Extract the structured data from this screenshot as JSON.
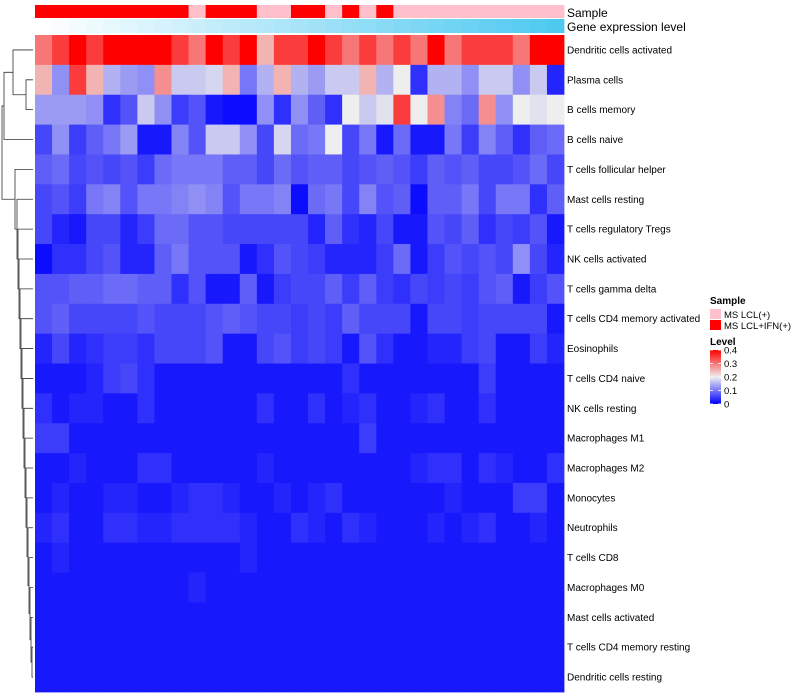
{
  "chart_data": {
    "type": "heatmap",
    "annotations": [
      {
        "name": "Sample",
        "values": [
          "MS LCL+IFN(+)",
          "MS LCL+IFN(+)",
          "MS LCL+IFN(+)",
          "MS LCL+IFN(+)",
          "MS LCL+IFN(+)",
          "MS LCL+IFN(+)",
          "MS LCL+IFN(+)",
          "MS LCL+IFN(+)",
          "MS LCL+IFN(+)",
          "MS LCL(+)",
          "MS LCL+IFN(+)",
          "MS LCL+IFN(+)",
          "MS LCL+IFN(+)",
          "MS LCL(+)",
          "MS LCL(+)",
          "MS LCL+IFN(+)",
          "MS LCL+IFN(+)",
          "MS LCL(+)",
          "MS LCL+IFN(+)",
          "MS LCL(+)",
          "MS LCL+IFN(+)",
          "MS LCL(+)",
          "MS LCL(+)",
          "MS LCL(+)",
          "MS LCL(+)",
          "MS LCL(+)",
          "MS LCL(+)",
          "MS LCL(+)",
          "MS LCL(+)",
          "MS LCL(+)",
          "MS LCL(+)"
        ]
      },
      {
        "name": "Gene expression level",
        "gradient": [
          "#ffffff",
          "#4ec9f0"
        ]
      }
    ],
    "rows": [
      "Dendritic cells activated",
      "Plasma cells",
      "B cells memory",
      "B cells naive",
      "T cells follicular helper",
      "Mast cells resting",
      "T cells regulatory  Tregs",
      "NK cells activated",
      "T cells gamma delta",
      "T cells CD4 memory activated",
      "Eosinophils",
      "T cells CD4 naive",
      "NK cells resting",
      "Macrophages M1",
      "Macrophages M2",
      "Monocytes",
      "Neutrophils",
      "T cells CD8",
      "Macrophages M0",
      "Mast cells activated",
      "T cells CD4 memory resting",
      "Dendritic cells resting"
    ],
    "values": [
      [
        0.3,
        0.35,
        0.4,
        0.35,
        0.4,
        0.4,
        0.4,
        0.4,
        0.35,
        0.3,
        0.4,
        0.35,
        0.4,
        0.25,
        0.35,
        0.35,
        0.4,
        0.35,
        0.3,
        0.35,
        0.3,
        0.35,
        0.3,
        0.4,
        0.3,
        0.35,
        0.35,
        0.35,
        0.3,
        0.4,
        0.4
      ],
      [
        0.25,
        0.12,
        0.35,
        0.25,
        0.15,
        0.13,
        0.12,
        0.28,
        0.17,
        0.17,
        0.18,
        0.25,
        0.1,
        0.15,
        0.25,
        0.15,
        0.13,
        0.17,
        0.17,
        0.25,
        0.15,
        0.2,
        0.04,
        0.15,
        0.15,
        0.12,
        0.17,
        0.17,
        0.12,
        0.17,
        0.03
      ],
      [
        0.13,
        0.13,
        0.13,
        0.12,
        0.04,
        0.07,
        0.17,
        0.12,
        0.05,
        0.07,
        0.02,
        0.01,
        0.01,
        0.12,
        0.04,
        0.12,
        0.08,
        0.04,
        0.2,
        0.17,
        0.19,
        0.35,
        0.2,
        0.28,
        0.11,
        0.09,
        0.28,
        0.12,
        0.2,
        0.19,
        0.2
      ],
      [
        0.06,
        0.12,
        0.05,
        0.08,
        0.1,
        0.13,
        0.02,
        0.02,
        0.11,
        0.07,
        0.17,
        0.17,
        0.12,
        0.06,
        0.18,
        0.09,
        0.1,
        0.2,
        0.06,
        0.1,
        0.02,
        0.09,
        0.02,
        0.02,
        0.1,
        0.05,
        0.11,
        0.08,
        0.04,
        0.08,
        0.09
      ],
      [
        0.08,
        0.09,
        0.06,
        0.07,
        0.06,
        0.07,
        0.05,
        0.09,
        0.1,
        0.1,
        0.1,
        0.08,
        0.08,
        0.06,
        0.09,
        0.07,
        0.08,
        0.08,
        0.06,
        0.07,
        0.08,
        0.07,
        0.05,
        0.08,
        0.07,
        0.08,
        0.06,
        0.06,
        0.07,
        0.09,
        0.06
      ],
      [
        0.06,
        0.07,
        0.05,
        0.1,
        0.11,
        0.07,
        0.1,
        0.1,
        0.11,
        0.12,
        0.11,
        0.07,
        0.1,
        0.1,
        0.11,
        0.01,
        0.09,
        0.1,
        0.06,
        0.11,
        0.07,
        0.08,
        0.01,
        0.08,
        0.08,
        0.1,
        0.06,
        0.1,
        0.1,
        0.04,
        0.08
      ],
      [
        0.06,
        0.03,
        0.02,
        0.06,
        0.06,
        0.03,
        0.05,
        0.09,
        0.09,
        0.07,
        0.07,
        0.06,
        0.06,
        0.06,
        0.06,
        0.06,
        0.03,
        0.08,
        0.04,
        0.03,
        0.06,
        0.02,
        0.02,
        0.07,
        0.06,
        0.08,
        0.04,
        0.06,
        0.05,
        0.07,
        0.02
      ],
      [
        0.01,
        0.04,
        0.04,
        0.06,
        0.07,
        0.03,
        0.03,
        0.08,
        0.1,
        0.07,
        0.07,
        0.07,
        0.02,
        0.04,
        0.07,
        0.06,
        0.05,
        0.03,
        0.03,
        0.03,
        0.05,
        0.09,
        0.02,
        0.05,
        0.07,
        0.06,
        0.07,
        0.06,
        0.12,
        0.06,
        0.03
      ],
      [
        0.07,
        0.07,
        0.08,
        0.08,
        0.09,
        0.09,
        0.08,
        0.08,
        0.04,
        0.07,
        0.02,
        0.02,
        0.08,
        0.02,
        0.05,
        0.06,
        0.06,
        0.08,
        0.05,
        0.08,
        0.05,
        0.04,
        0.06,
        0.05,
        0.06,
        0.05,
        0.07,
        0.08,
        0.02,
        0.05,
        0.07
      ],
      [
        0.07,
        0.08,
        0.06,
        0.06,
        0.06,
        0.06,
        0.07,
        0.06,
        0.06,
        0.06,
        0.07,
        0.08,
        0.07,
        0.06,
        0.06,
        0.05,
        0.06,
        0.05,
        0.08,
        0.06,
        0.06,
        0.06,
        0.02,
        0.06,
        0.06,
        0.05,
        0.06,
        0.06,
        0.06,
        0.06,
        0.02
      ],
      [
        0.03,
        0.06,
        0.03,
        0.04,
        0.05,
        0.05,
        0.04,
        0.06,
        0.06,
        0.06,
        0.07,
        0.02,
        0.02,
        0.06,
        0.07,
        0.05,
        0.06,
        0.05,
        0.02,
        0.07,
        0.04,
        0.02,
        0.02,
        0.03,
        0.03,
        0.05,
        0.06,
        0.02,
        0.02,
        0.05,
        0.03
      ],
      [
        0.02,
        0.02,
        0.02,
        0.03,
        0.05,
        0.06,
        0.04,
        0.02,
        0.02,
        0.02,
        0.02,
        0.02,
        0.02,
        0.02,
        0.02,
        0.02,
        0.02,
        0.02,
        0.04,
        0.02,
        0.02,
        0.02,
        0.02,
        0.02,
        0.02,
        0.02,
        0.05,
        0.02,
        0.02,
        0.02,
        0.02
      ],
      [
        0.04,
        0.02,
        0.03,
        0.03,
        0.02,
        0.02,
        0.04,
        0.02,
        0.02,
        0.02,
        0.02,
        0.02,
        0.02,
        0.04,
        0.02,
        0.02,
        0.04,
        0.02,
        0.03,
        0.04,
        0.02,
        0.02,
        0.03,
        0.04,
        0.02,
        0.02,
        0.04,
        0.02,
        0.02,
        0.02,
        0.02
      ],
      [
        0.05,
        0.05,
        0.02,
        0.02,
        0.02,
        0.02,
        0.02,
        0.02,
        0.02,
        0.02,
        0.02,
        0.02,
        0.02,
        0.02,
        0.02,
        0.02,
        0.02,
        0.02,
        0.02,
        0.05,
        0.02,
        0.02,
        0.02,
        0.02,
        0.02,
        0.02,
        0.02,
        0.02,
        0.02,
        0.02,
        0.02
      ],
      [
        0.02,
        0.02,
        0.03,
        0.02,
        0.02,
        0.02,
        0.04,
        0.04,
        0.02,
        0.02,
        0.02,
        0.02,
        0.02,
        0.03,
        0.02,
        0.02,
        0.02,
        0.02,
        0.02,
        0.02,
        0.02,
        0.02,
        0.03,
        0.04,
        0.04,
        0.02,
        0.04,
        0.03,
        0.02,
        0.02,
        0.04
      ],
      [
        0.02,
        0.03,
        0.02,
        0.02,
        0.03,
        0.03,
        0.02,
        0.02,
        0.03,
        0.04,
        0.04,
        0.03,
        0.02,
        0.02,
        0.03,
        0.02,
        0.03,
        0.04,
        0.02,
        0.02,
        0.02,
        0.02,
        0.02,
        0.02,
        0.03,
        0.02,
        0.02,
        0.02,
        0.05,
        0.05,
        0.02
      ],
      [
        0.03,
        0.04,
        0.02,
        0.02,
        0.04,
        0.04,
        0.03,
        0.03,
        0.04,
        0.04,
        0.04,
        0.04,
        0.03,
        0.02,
        0.02,
        0.04,
        0.03,
        0.02,
        0.04,
        0.03,
        0.02,
        0.02,
        0.02,
        0.03,
        0.02,
        0.03,
        0.04,
        0.02,
        0.02,
        0.03,
        0.02
      ],
      [
        0.02,
        0.03,
        0.02,
        0.02,
        0.02,
        0.02,
        0.02,
        0.02,
        0.02,
        0.02,
        0.02,
        0.02,
        0.03,
        0.02,
        0.02,
        0.02,
        0.02,
        0.02,
        0.02,
        0.02,
        0.02,
        0.02,
        0.02,
        0.02,
        0.02,
        0.02,
        0.02,
        0.02,
        0.02,
        0.02,
        0.02
      ],
      [
        0.02,
        0.02,
        0.02,
        0.02,
        0.02,
        0.02,
        0.02,
        0.02,
        0.02,
        0.03,
        0.02,
        0.02,
        0.02,
        0.02,
        0.02,
        0.02,
        0.02,
        0.02,
        0.02,
        0.02,
        0.02,
        0.02,
        0.02,
        0.02,
        0.02,
        0.02,
        0.02,
        0.02,
        0.02,
        0.02,
        0.02
      ],
      [
        0.02,
        0.02,
        0.02,
        0.02,
        0.02,
        0.02,
        0.02,
        0.02,
        0.02,
        0.02,
        0.02,
        0.02,
        0.02,
        0.02,
        0.02,
        0.02,
        0.02,
        0.02,
        0.02,
        0.02,
        0.02,
        0.02,
        0.02,
        0.02,
        0.02,
        0.02,
        0.02,
        0.02,
        0.02,
        0.02,
        0.02
      ],
      [
        0.02,
        0.02,
        0.02,
        0.02,
        0.02,
        0.02,
        0.02,
        0.02,
        0.02,
        0.02,
        0.02,
        0.02,
        0.02,
        0.02,
        0.02,
        0.02,
        0.02,
        0.02,
        0.02,
        0.02,
        0.02,
        0.02,
        0.02,
        0.02,
        0.02,
        0.02,
        0.02,
        0.02,
        0.02,
        0.02,
        0.02
      ],
      [
        0.02,
        0.02,
        0.02,
        0.02,
        0.02,
        0.02,
        0.02,
        0.02,
        0.02,
        0.02,
        0.02,
        0.02,
        0.02,
        0.02,
        0.02,
        0.02,
        0.02,
        0.02,
        0.02,
        0.02,
        0.02,
        0.02,
        0.02,
        0.02,
        0.02,
        0.02,
        0.02,
        0.02,
        0.02,
        0.02,
        0.02
      ]
    ],
    "color_scale": {
      "min": 0,
      "mid": 0.2,
      "max": 0.4,
      "low_color": "#0000ff",
      "mid_color": "#eeeeee",
      "high_color": "#ff0000"
    },
    "legends": {
      "sample": {
        "title": "Sample",
        "entries": [
          {
            "label": "MS LCL(+)",
            "color": "#ffc0cb"
          },
          {
            "label": "MS LCL+IFN(+)",
            "color": "#ff0000"
          }
        ]
      },
      "level": {
        "title": "Level",
        "ticks": [
          {
            "value": 0.4,
            "label": "0.4"
          },
          {
            "value": 0.3,
            "label": "0.3"
          },
          {
            "value": 0.2,
            "label": "0.2"
          },
          {
            "value": 0.1,
            "label": "0.1"
          },
          {
            "value": 0,
            "label": "0"
          }
        ]
      }
    },
    "row_dendrogram": true
  }
}
